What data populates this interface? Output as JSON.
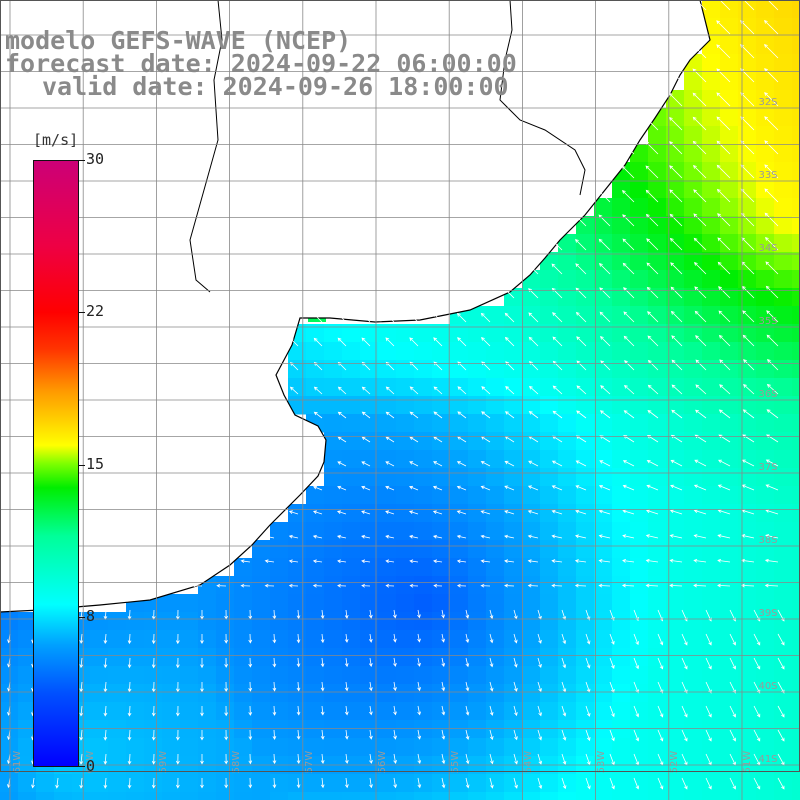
{
  "title": {
    "line1": "modelo GEFS-WAVE (NCEP)",
    "line2": "forecast date: 2024-09-22 06:00:00",
    "line3": "valid date: 2024-09-26 18:00:00"
  },
  "colorbar": {
    "unit": "[m/s]",
    "min": 0,
    "max": 30,
    "ticks": [
      {
        "value": 30,
        "label": "30"
      },
      {
        "value": 22,
        "label": "22"
      },
      {
        "value": 15,
        "label": "15"
      },
      {
        "value": 8,
        "label": "8"
      },
      {
        "value": 0,
        "label": "0"
      }
    ]
  },
  "map": {
    "lat_labels": [
      "32S",
      "33S",
      "34S",
      "35S",
      "36S",
      "37S",
      "38S",
      "39S",
      "40S",
      "41S"
    ],
    "lon_labels": [
      "61W",
      "60W",
      "59W",
      "58W",
      "57W",
      "56W",
      "55W",
      "54W",
      "53W",
      "52W",
      "51W"
    ],
    "colors": {
      "land": "#ffffff",
      "grid": "#888888",
      "coast": "#000000",
      "arrow": "#ffffff"
    }
  }
}
